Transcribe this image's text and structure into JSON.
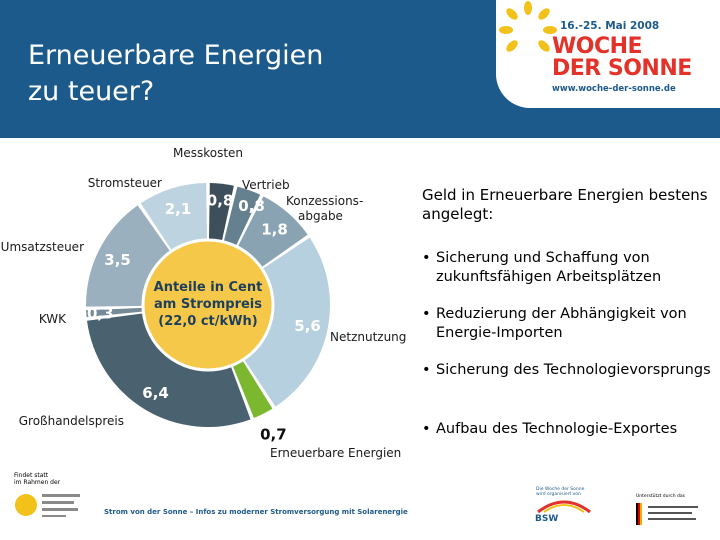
{
  "header": {
    "title": "Erneuerbare Energien\nzu teuer?"
  },
  "logo": {
    "date": "16.-25. Mai 2008",
    "line1": "WOCHE",
    "line2": "DER SONNE",
    "url": "www.woche-der-sonne.de",
    "accent_color": "#e2322a",
    "sun_color": "#f2c21b"
  },
  "chart_data": {
    "type": "pie",
    "title": "",
    "center_label": [
      "Anteile in Cent",
      "am Strompreis",
      "(22,0 ct/kWh)"
    ],
    "total": "22,0",
    "unit": "ct/kWh",
    "categories": [
      "Messkosten",
      "Vertrieb",
      "Konzessions-abgabe",
      "Netznutzung",
      "Erneuerbare Energien",
      "Großhandelspreis",
      "KWK",
      "Umsatzsteuer",
      "Stromsteuer"
    ],
    "values": [
      0.8,
      0.8,
      1.8,
      5.6,
      0.7,
      6.4,
      0.3,
      3.5,
      2.1
    ],
    "value_labels": [
      "0,8",
      "0,8",
      "1,8",
      "5,6",
      "0,7",
      "6,4",
      "0,3",
      "3,5",
      "2,1"
    ],
    "colors": [
      "#3d4f5b",
      "#65808f",
      "#8aa3b3",
      "#b7d0e0",
      "#7cb82f",
      "#4a6170",
      "#758b98",
      "#9bb0bf",
      "#bed3e0"
    ],
    "center_color": "#f6c84a"
  },
  "side_panel": {
    "heading": "Geld in Erneuerbare Energien bestens angelegt:",
    "bullet_mark": "•",
    "bullets": [
      "Sicherung und Schaffung von zukunftsfähigen Arbeitsplätzen",
      "Reduzierung der Abhängigkeit von Energie-Importen",
      "Sicherung des Technologievorsprungs",
      "Aufbau des Technologie-Exportes"
    ]
  },
  "footer": {
    "note": "Findet statt\nim Rahmen der",
    "caption": "Strom von der Sonne – Infos zu moderner Stromversorgung mit Solarenergie",
    "bsw_text": "Die Woche der Sonne\nwird organisiert von",
    "bsw_label": "BSW",
    "gov_text": "Unterstützt durch das"
  }
}
